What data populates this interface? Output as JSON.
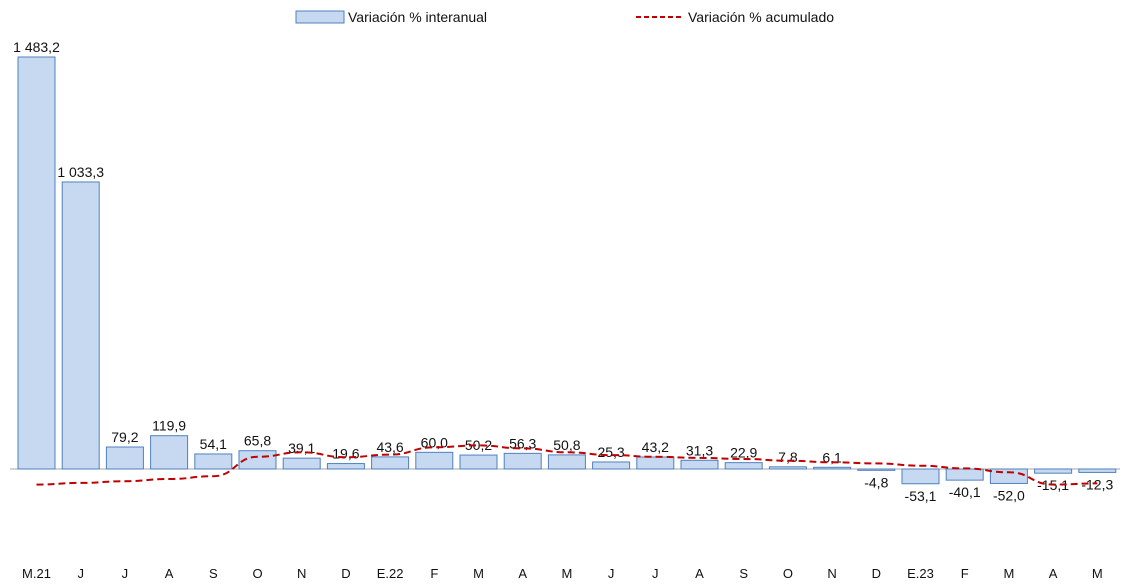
{
  "chart_data": {
    "type": "bar",
    "categories": [
      "M.21",
      "J",
      "J",
      "A",
      "S",
      "O",
      "N",
      "D",
      "E.22",
      "F",
      "M",
      "A",
      "M",
      "J",
      "J",
      "A",
      "S",
      "O",
      "N",
      "D",
      "E.23",
      "F",
      "M",
      "A",
      "M"
    ],
    "series": [
      {
        "name": "Variación % interanual",
        "type": "bar",
        "values": [
          1483.2,
          1033.3,
          79.2,
          119.9,
          54.1,
          65.8,
          39.1,
          19.6,
          43.6,
          60.0,
          50.2,
          56.3,
          50.8,
          25.3,
          43.2,
          31.3,
          22.9,
          7.8,
          6.1,
          -4.8,
          -53.1,
          -40.1,
          -52.0,
          -15.1,
          -12.3
        ],
        "labels": [
          "1 483,2",
          "1 033,3",
          "79,2",
          "119,9",
          "54,1",
          "65,8",
          "39,1",
          "19,6",
          "43,6",
          "60,0",
          "50,2",
          "56,3",
          "50,8",
          "25,3",
          "43,2",
          "31,3",
          "22,9",
          "7,8",
          "6,1",
          "-4,8",
          "-53,1",
          "-40,1",
          "-52,0",
          "-15,1",
          "-12,3"
        ],
        "color": "#c6d9f1",
        "stroke": "#4f81bd"
      },
      {
        "name": "Variación % acumulado",
        "type": "line",
        "style": "dashed",
        "values": [
          -56,
          -50,
          -44,
          -36,
          -26,
          44,
          60,
          42,
          52,
          78,
          85,
          74,
          60,
          50,
          44,
          40,
          36,
          30,
          24,
          20,
          12,
          2,
          -12,
          -56,
          -52
        ],
        "color": "#c00000"
      }
    ],
    "ylim": [
      -170,
      1560
    ],
    "legend": "top-center",
    "grid": false
  }
}
